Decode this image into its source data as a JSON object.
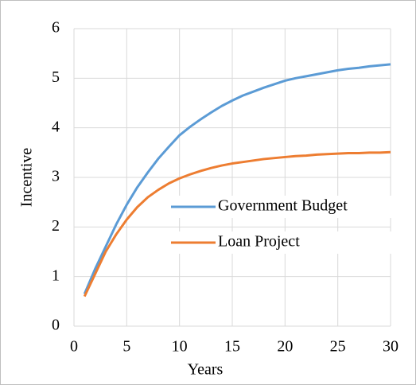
{
  "chart_data": {
    "type": "line",
    "x": [
      1,
      2,
      3,
      4,
      5,
      6,
      7,
      8,
      9,
      10,
      11,
      12,
      13,
      14,
      15,
      16,
      17,
      18,
      19,
      20,
      21,
      22,
      23,
      24,
      25,
      26,
      27,
      28,
      29,
      30
    ],
    "series": [
      {
        "name": "Government Budget",
        "color": "#5b9bd5",
        "values": [
          0.65,
          1.15,
          1.6,
          2.05,
          2.45,
          2.8,
          3.1,
          3.38,
          3.62,
          3.85,
          4.02,
          4.17,
          4.31,
          4.44,
          4.55,
          4.65,
          4.73,
          4.81,
          4.88,
          4.95,
          5.0,
          5.04,
          5.08,
          5.12,
          5.16,
          5.19,
          5.21,
          5.24,
          5.26,
          5.28
        ]
      },
      {
        "name": "Loan Project",
        "color": "#ed7d31",
        "values": [
          0.6,
          1.05,
          1.5,
          1.85,
          2.15,
          2.4,
          2.6,
          2.75,
          2.88,
          2.98,
          3.06,
          3.13,
          3.19,
          3.24,
          3.28,
          3.31,
          3.34,
          3.37,
          3.39,
          3.41,
          3.43,
          3.44,
          3.46,
          3.47,
          3.48,
          3.49,
          3.49,
          3.5,
          3.5,
          3.51
        ]
      }
    ],
    "xlabel": "Years",
    "ylabel": "Incentive",
    "xlim": [
      0,
      30
    ],
    "xticks": [
      0,
      5,
      10,
      15,
      20,
      25,
      30
    ],
    "ylim": [
      0,
      6
    ],
    "yticks": [
      0,
      1,
      2,
      3,
      4,
      5,
      6
    ],
    "grid": true,
    "legend": "right"
  }
}
